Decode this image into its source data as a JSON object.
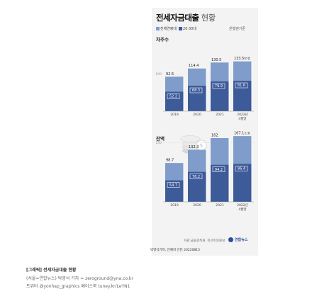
{
  "title_bold": "전세자금대출",
  "title_rest": " 현황",
  "basis": "은행권기준",
  "legend": [
    {
      "name": "전체연령대",
      "color": "#7f9ccb"
    },
    {
      "name": "20·30대",
      "color": "#3d5a99"
    }
  ],
  "chart_data": [
    {
      "type": "bar",
      "title": "차주수",
      "categories": [
        "2019",
        "2020",
        "2021",
        "2022년"
      ],
      "category_sub": [
        "",
        "",
        "",
        "4월말"
      ],
      "series": [
        {
          "name": "전체연령대",
          "values": [
            92.5,
            114.4,
            130.5,
            133.5
          ]
        },
        {
          "name": "20·30대",
          "values": [
            52.2,
            68.3,
            79.9,
            81.6
          ]
        }
      ],
      "last_value_unit": "만 명",
      "ylim": [
        0,
        150
      ],
      "ytick": "100",
      "ytick_value": 100
    },
    {
      "type": "bar",
      "title": "잔액",
      "categories": [
        "2019",
        "2020",
        "2021",
        "2022년"
      ],
      "category_sub": [
        "",
        "",
        "",
        "4월말"
      ],
      "series": [
        {
          "name": "전체연령대",
          "values": [
            98.7,
            132.3,
            162.0,
            167.1
          ]
        },
        {
          "name": "20·30대",
          "values": [
            54.7,
            76.2,
            94.2,
            96.4
          ]
        }
      ],
      "last_value_unit": "조 원",
      "ylim": [
        0,
        180
      ],
      "ytick": "150",
      "ytick_value": 150
    }
  ],
  "source": "자료:금융감독원, 진선미의원실",
  "logo_text": "연합뉴스",
  "author": "박영석기자, 안예지 인턴  20220815",
  "caption": {
    "line1": "[그래픽] 전세자금대출 현황",
    "line2": "(서울=연합뉴스) 박영석 기자 = zeroground@yna.co.kr",
    "line3": "트위터 @yonhap_graphics 페이스북 tuney.kr/LeYN1"
  }
}
